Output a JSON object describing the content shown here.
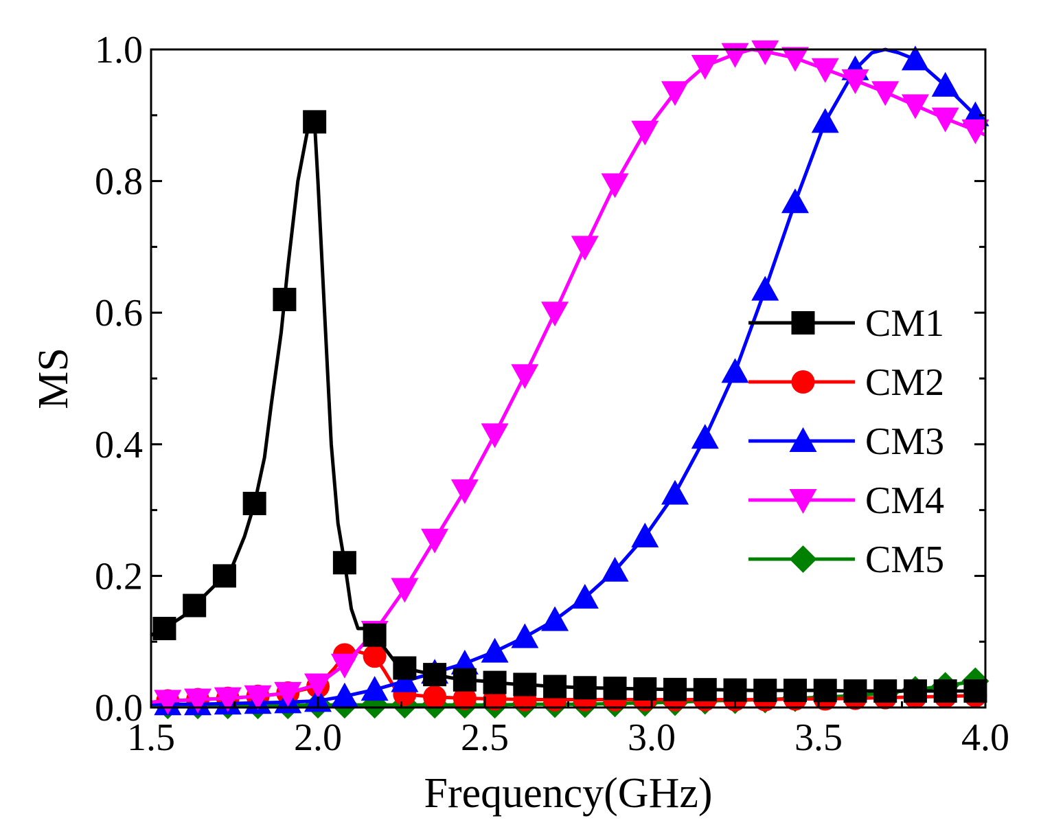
{
  "chart_data": {
    "type": "line",
    "title": "",
    "xlabel": "Frequency(GHz)",
    "ylabel": "MS",
    "xlim": [
      1.5,
      4.0
    ],
    "ylim": [
      0.0,
      1.0
    ],
    "xticks": [
      "1.5",
      "2.0",
      "2.5",
      "3.0",
      "3.5",
      "4.0"
    ],
    "yticks": [
      "0.0",
      "0.2",
      "0.4",
      "0.6",
      "0.8",
      "1.0"
    ],
    "grid": false,
    "legend_position": "right",
    "series": [
      {
        "name": "CM1",
        "color": "#000000",
        "marker": "square",
        "x": [
          1.5,
          1.54,
          1.6,
          1.64,
          1.7,
          1.74,
          1.78,
          1.81,
          1.84,
          1.86,
          1.89,
          1.91,
          1.94,
          1.97,
          1.98,
          1.99,
          2.0,
          2.02,
          2.04,
          2.06,
          2.08,
          2.1,
          2.12,
          2.14,
          2.17,
          2.2,
          2.23,
          2.26,
          2.3,
          2.35,
          2.4,
          2.44,
          2.5,
          2.53,
          2.6,
          2.62,
          2.7,
          2.8,
          2.9,
          3.0,
          3.1,
          3.2,
          3.3,
          3.4,
          3.5,
          3.6,
          3.7,
          3.8,
          3.9,
          4.0
        ],
        "y": [
          0.11,
          0.12,
          0.14,
          0.16,
          0.19,
          0.21,
          0.26,
          0.31,
          0.38,
          0.46,
          0.57,
          0.67,
          0.8,
          0.88,
          0.9,
          0.89,
          0.8,
          0.6,
          0.4,
          0.28,
          0.22,
          0.15,
          0.12,
          0.12,
          0.11,
          0.09,
          0.07,
          0.06,
          0.055,
          0.05,
          0.045,
          0.042,
          0.04,
          0.038,
          0.035,
          0.035,
          0.032,
          0.03,
          0.029,
          0.028,
          0.027,
          0.027,
          0.026,
          0.026,
          0.026,
          0.025,
          0.025,
          0.025,
          0.025,
          0.025
        ],
        "marker_x": [
          1.54,
          1.63,
          1.72,
          1.81,
          1.9,
          1.99,
          2.08,
          2.17,
          2.26,
          2.35,
          2.44,
          2.53,
          2.62,
          2.71,
          2.8,
          2.89,
          2.98,
          3.07,
          3.16,
          3.25,
          3.34,
          3.43,
          3.52,
          3.61,
          3.7,
          3.79,
          3.88,
          3.97
        ]
      },
      {
        "name": "CM2",
        "color": "#ff0000",
        "marker": "circle",
        "x": [
          1.5,
          1.55,
          1.64,
          1.73,
          1.82,
          1.91,
          2.0,
          2.05,
          2.08,
          2.12,
          2.17,
          2.2,
          2.23,
          2.26,
          2.35,
          2.44,
          2.53,
          2.62,
          2.71,
          2.8,
          2.89,
          2.98,
          3.07,
          3.16,
          3.25,
          3.34,
          3.43,
          3.52,
          3.61,
          3.7,
          3.79,
          3.88,
          3.97,
          4.0
        ],
        "y": [
          0.008,
          0.01,
          0.012,
          0.014,
          0.017,
          0.022,
          0.032,
          0.06,
          0.08,
          0.085,
          0.078,
          0.055,
          0.03,
          0.02,
          0.016,
          0.014,
          0.013,
          0.012,
          0.012,
          0.012,
          0.012,
          0.012,
          0.012,
          0.012,
          0.012,
          0.012,
          0.013,
          0.013,
          0.014,
          0.015,
          0.016,
          0.017,
          0.018,
          0.018
        ],
        "marker_x": [
          1.55,
          1.64,
          1.73,
          1.82,
          1.91,
          2.0,
          2.08,
          2.17,
          2.26,
          2.35,
          2.44,
          2.53,
          2.62,
          2.71,
          2.8,
          2.89,
          2.98,
          3.07,
          3.16,
          3.25,
          3.34,
          3.43,
          3.52,
          3.61,
          3.7,
          3.79,
          3.88,
          3.97
        ]
      },
      {
        "name": "CM3",
        "color": "#0000ff",
        "marker": "triangle-up",
        "x": [
          1.5,
          1.55,
          1.64,
          1.73,
          1.82,
          1.91,
          2.0,
          2.08,
          2.17,
          2.26,
          2.35,
          2.44,
          2.53,
          2.62,
          2.71,
          2.8,
          2.89,
          2.98,
          3.07,
          3.16,
          3.25,
          3.34,
          3.43,
          3.52,
          3.61,
          3.66,
          3.7,
          3.74,
          3.79,
          3.88,
          3.97,
          4.0
        ],
        "y": [
          0.005,
          0.005,
          0.005,
          0.006,
          0.007,
          0.008,
          0.01,
          0.017,
          0.027,
          0.04,
          0.053,
          0.067,
          0.085,
          0.107,
          0.133,
          0.167,
          0.208,
          0.26,
          0.325,
          0.41,
          0.51,
          0.635,
          0.768,
          0.89,
          0.97,
          0.995,
          1.0,
          0.995,
          0.985,
          0.945,
          0.9,
          0.88
        ],
        "marker_x": [
          1.55,
          1.64,
          1.73,
          1.82,
          1.91,
          2.0,
          2.08,
          2.17,
          2.26,
          2.35,
          2.44,
          2.53,
          2.62,
          2.71,
          2.8,
          2.89,
          2.98,
          3.07,
          3.16,
          3.25,
          3.34,
          3.43,
          3.52,
          3.61,
          3.79,
          3.88,
          3.97
        ]
      },
      {
        "name": "CM4",
        "color": "#ff00ff",
        "marker": "triangle-down",
        "x": [
          1.5,
          1.55,
          1.64,
          1.73,
          1.82,
          1.91,
          2.0,
          2.08,
          2.17,
          2.26,
          2.35,
          2.44,
          2.53,
          2.62,
          2.71,
          2.8,
          2.89,
          2.98,
          3.07,
          3.16,
          3.25,
          3.3,
          3.34,
          3.43,
          3.52,
          3.61,
          3.7,
          3.79,
          3.88,
          3.97,
          4.0
        ],
        "y": [
          0.008,
          0.01,
          0.012,
          0.014,
          0.017,
          0.022,
          0.035,
          0.065,
          0.115,
          0.18,
          0.255,
          0.33,
          0.415,
          0.505,
          0.6,
          0.7,
          0.795,
          0.875,
          0.935,
          0.975,
          0.993,
          1.0,
          0.997,
          0.987,
          0.97,
          0.953,
          0.935,
          0.915,
          0.895,
          0.877,
          0.87
        ],
        "marker_x": [
          1.55,
          1.64,
          1.73,
          1.82,
          1.91,
          2.0,
          2.08,
          2.17,
          2.26,
          2.35,
          2.44,
          2.53,
          2.62,
          2.71,
          2.8,
          2.89,
          2.98,
          3.07,
          3.16,
          3.25,
          3.34,
          3.43,
          3.52,
          3.61,
          3.7,
          3.79,
          3.88,
          3.97
        ]
      },
      {
        "name": "CM5",
        "color": "#008000",
        "marker": "diamond",
        "x": [
          1.5,
          1.55,
          1.64,
          1.73,
          1.82,
          1.91,
          2.0,
          2.08,
          2.17,
          2.26,
          2.35,
          2.44,
          2.53,
          2.62,
          2.71,
          2.8,
          2.89,
          2.98,
          3.07,
          3.16,
          3.25,
          3.34,
          3.43,
          3.52,
          3.61,
          3.7,
          3.79,
          3.88,
          3.97,
          4.0
        ],
        "y": [
          0.003,
          0.003,
          0.003,
          0.003,
          0.003,
          0.003,
          0.004,
          0.004,
          0.004,
          0.004,
          0.004,
          0.004,
          0.004,
          0.005,
          0.005,
          0.005,
          0.006,
          0.007,
          0.008,
          0.01,
          0.011,
          0.012,
          0.014,
          0.016,
          0.018,
          0.022,
          0.027,
          0.033,
          0.04,
          0.042
        ],
        "marker_x": [
          1.55,
          1.64,
          1.73,
          1.82,
          1.91,
          2.0,
          2.08,
          2.17,
          2.26,
          2.35,
          2.44,
          2.53,
          2.62,
          2.71,
          2.8,
          2.89,
          2.98,
          3.07,
          3.16,
          3.25,
          3.34,
          3.43,
          3.52,
          3.61,
          3.7,
          3.79,
          3.88,
          3.97
        ]
      }
    ]
  }
}
